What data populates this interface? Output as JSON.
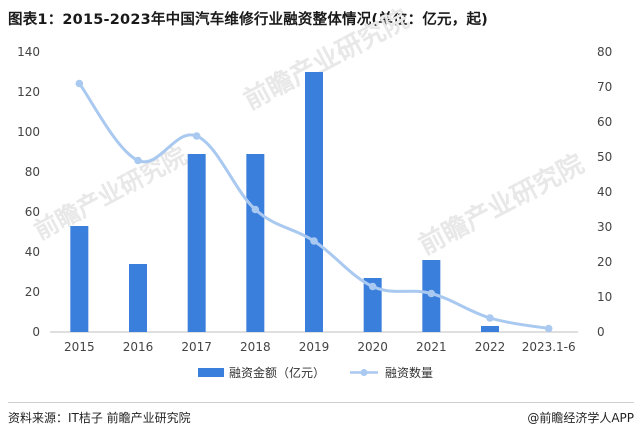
{
  "title": "图表1：2015-2023年中国汽车维修行业融资整体情况(单位：亿元，起)",
  "chart_data": {
    "type": "bar",
    "categories": [
      "2015",
      "2016",
      "2017",
      "2018",
      "2019",
      "2020",
      "2021",
      "2022",
      "2023.1-6"
    ],
    "series": [
      {
        "name": "融资金额（亿元）",
        "type": "bar",
        "axis": "left",
        "values": [
          53,
          34,
          89,
          89,
          130,
          27,
          36,
          3,
          0
        ]
      },
      {
        "name": "融资数量",
        "type": "line",
        "axis": "right",
        "values": [
          71,
          49,
          56,
          35,
          26,
          13,
          11,
          4,
          1
        ]
      }
    ],
    "y_left": {
      "ylim": [
        0,
        140
      ],
      "ticks": [
        0,
        20,
        40,
        60,
        80,
        100,
        120,
        140
      ]
    },
    "y_right": {
      "ylim": [
        0,
        80
      ],
      "ticks": [
        0,
        10,
        20,
        30,
        40,
        50,
        60,
        70,
        80
      ]
    },
    "colors": {
      "bar": "#3b7fdc",
      "line": "#a9c9f0",
      "axis_text": "#444444"
    },
    "legend_position": "bottom-center",
    "grid": false
  },
  "watermark": "前瞻产业研究院",
  "footer": {
    "source": "资料来源：IT桔子 前瞻产业研究院",
    "brand": "@前瞻经济学人APP"
  }
}
